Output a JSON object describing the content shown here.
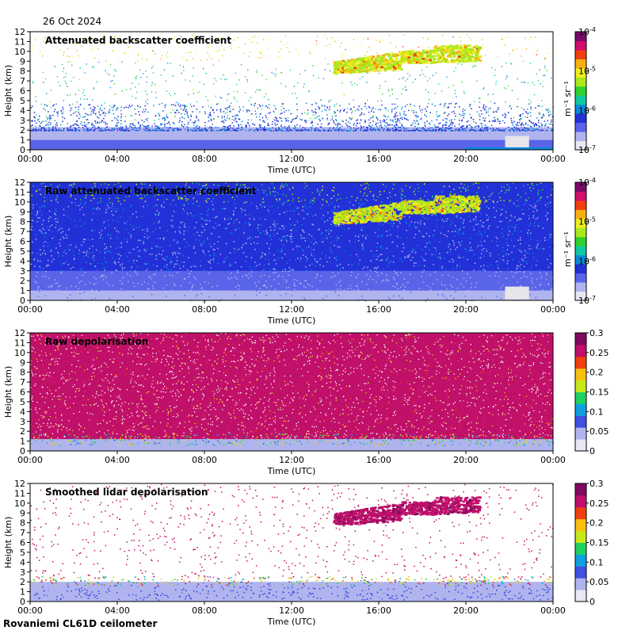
{
  "date_label": "26 Oct 2024",
  "footer_label": "Rovaniemi CL61D ceilometer",
  "colors": {
    "backscatter_scale": [
      "#e8e8f4",
      "#b0b4ee",
      "#5a64e8",
      "#2230d8",
      "#0a8ad8",
      "#10c8a0",
      "#2ed12e",
      "#a8e81c",
      "#f0ee1e",
      "#f8b010",
      "#f04010",
      "#d0106a",
      "#7a0a6a"
    ],
    "depol_scale": [
      "#e8e8f4",
      "#b0b4ee",
      "#4050e0",
      "#10a0e0",
      "#20d060",
      "#c8e81c",
      "#f8c010",
      "#f04010",
      "#c0106a",
      "#800a60"
    ],
    "background": "#ffffff"
  },
  "chart_data": [
    {
      "type": "heatmap",
      "title": "Attenuated backscatter coefficient",
      "xlabel": "Time (UTC)",
      "ylabel": "Height (km)",
      "x_ticks": [
        "00:00",
        "04:00",
        "08:00",
        "12:00",
        "16:00",
        "20:00",
        "00:00"
      ],
      "y_ticks": [
        "0",
        "1",
        "2",
        "3",
        "4",
        "5",
        "6",
        "7",
        "8",
        "9",
        "10",
        "11",
        "12"
      ],
      "ylim": [
        0,
        12
      ],
      "colorbar": {
        "scale": "log",
        "range": [
          1e-07,
          0.0001
        ],
        "ticks": [
          {
            "base": "10",
            "exp": "-7",
            "value": 1e-07
          },
          {
            "base": "10",
            "exp": "-6",
            "value": 1e-06
          },
          {
            "base": "10",
            "exp": "-5",
            "value": 1e-05
          },
          {
            "base": "10",
            "exp": "-4",
            "value": 0.0001
          }
        ],
        "unit": "m⁻¹ sr⁻¹"
      }
    },
    {
      "type": "heatmap",
      "title": "Raw attenuated backscatter coefficient",
      "xlabel": "Time (UTC)",
      "ylabel": "Height (km)",
      "x_ticks": [
        "00:00",
        "04:00",
        "08:00",
        "12:00",
        "16:00",
        "20:00",
        "00:00"
      ],
      "y_ticks": [
        "0",
        "1",
        "2",
        "3",
        "4",
        "5",
        "6",
        "7",
        "8",
        "9",
        "10",
        "11",
        "12"
      ],
      "ylim": [
        0,
        12
      ],
      "colorbar": {
        "scale": "log",
        "range": [
          1e-07,
          0.0001
        ],
        "ticks": [
          {
            "base": "10",
            "exp": "-7",
            "value": 1e-07
          },
          {
            "base": "10",
            "exp": "-6",
            "value": 1e-06
          },
          {
            "base": "10",
            "exp": "-5",
            "value": 1e-05
          },
          {
            "base": "10",
            "exp": "-4",
            "value": 0.0001
          }
        ],
        "unit": "m⁻¹ sr⁻¹"
      }
    },
    {
      "type": "heatmap",
      "title": "Raw depolarisation",
      "xlabel": "Time (UTC)",
      "ylabel": "Height (km)",
      "x_ticks": [
        "00:00",
        "04:00",
        "08:00",
        "12:00",
        "16:00",
        "20:00",
        "00:00"
      ],
      "y_ticks": [
        "0",
        "1",
        "2",
        "3",
        "4",
        "5",
        "6",
        "7",
        "8",
        "9",
        "10",
        "11",
        "12"
      ],
      "ylim": [
        0,
        12
      ],
      "colorbar": {
        "scale": "linear",
        "range": [
          0,
          0.3
        ],
        "ticks": [
          {
            "label": "0",
            "value": 0
          },
          {
            "label": "0.05",
            "value": 0.05
          },
          {
            "label": "0.1",
            "value": 0.1
          },
          {
            "label": "0.15",
            "value": 0.15
          },
          {
            "label": "0.2",
            "value": 0.2
          },
          {
            "label": "0.25",
            "value": 0.25
          },
          {
            "label": "0.3",
            "value": 0.3
          }
        ],
        "unit": ""
      }
    },
    {
      "type": "heatmap",
      "title": "Smoothed lidar depolarisation",
      "xlabel": "Time (UTC)",
      "ylabel": "Height (km)",
      "x_ticks": [
        "00:00",
        "04:00",
        "08:00",
        "12:00",
        "16:00",
        "20:00",
        "00:00"
      ],
      "y_ticks": [
        "0",
        "1",
        "2",
        "3",
        "4",
        "5",
        "6",
        "7",
        "8",
        "9",
        "10",
        "11",
        "12"
      ],
      "ylim": [
        0,
        12
      ],
      "colorbar": {
        "scale": "linear",
        "range": [
          0,
          0.3
        ],
        "ticks": [
          {
            "label": "0",
            "value": 0
          },
          {
            "label": "0.05",
            "value": 0.05
          },
          {
            "label": "0.1",
            "value": 0.1
          },
          {
            "label": "0.15",
            "value": 0.15
          },
          {
            "label": "0.2",
            "value": 0.2
          },
          {
            "label": "0.25",
            "value": 0.25
          },
          {
            "label": "0.3",
            "value": 0.3
          }
        ],
        "unit": ""
      }
    }
  ]
}
